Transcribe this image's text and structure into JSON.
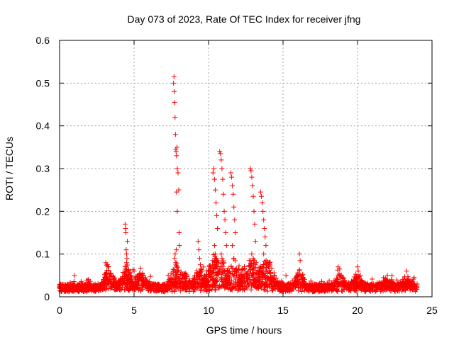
{
  "chart_data": {
    "type": "scatter",
    "title": "Day 073 of 2023, Rate Of TEC Index for receiver jfng",
    "xlabel": "GPS time / hours",
    "ylabel": "ROTI / TECUs",
    "xlim": [
      0,
      25
    ],
    "ylim": [
      0,
      0.6
    ],
    "xticks": [
      "0",
      "5",
      "10",
      "15",
      "20",
      "25"
    ],
    "yticks": [
      "0",
      "0.1",
      "0.2",
      "0.3",
      "0.4",
      "0.5",
      "0.6"
    ],
    "grid": true,
    "marker": "+",
    "color": "#ff0000",
    "series": [
      {
        "x": [
          4.4,
          4.42,
          4.45,
          4.47,
          4.5,
          4.52,
          4.55,
          4.43,
          4.48,
          4.5,
          7.65,
          7.68,
          7.7,
          7.72,
          7.75,
          7.78,
          7.8,
          7.82,
          7.85,
          7.88,
          7.9,
          7.95,
          8.0,
          7.85,
          7.9,
          8.02,
          8.05,
          7.72,
          7.76,
          7.8,
          7.83,
          7.86,
          7.9,
          9.3,
          9.35,
          9.4,
          9.45,
          9.5,
          10.3,
          10.35,
          10.4,
          10.45,
          10.5,
          10.55,
          10.6,
          10.4,
          10.45,
          10.75,
          10.8,
          10.85,
          10.9,
          10.95,
          11.0,
          11.05,
          11.1,
          11.15,
          11.2,
          10.85,
          10.9,
          11.0,
          11.5,
          11.55,
          11.6,
          11.65,
          11.7,
          11.75,
          11.8,
          11.6,
          11.7,
          12.8,
          12.85,
          12.9,
          12.95,
          13.0,
          13.05,
          13.1,
          13.15,
          12.9,
          13.0,
          13.2,
          13.5,
          13.55,
          13.6,
          13.65,
          13.7,
          13.75,
          13.8,
          13.85,
          13.7,
          16.1,
          16.15,
          18.7,
          18.8,
          20.0,
          20.05,
          22.0,
          23.3,
          3.1,
          3.2,
          5.0,
          1.0,
          15.2
        ],
        "y": [
          0.17,
          0.16,
          0.15,
          0.11,
          0.1,
          0.09,
          0.13,
          0.06,
          0.07,
          0.08,
          0.5,
          0.515,
          0.48,
          0.455,
          0.42,
          0.38,
          0.345,
          0.34,
          0.33,
          0.35,
          0.3,
          0.29,
          0.25,
          0.245,
          0.2,
          0.15,
          0.12,
          0.09,
          0.1,
          0.08,
          0.11,
          0.07,
          0.06,
          0.13,
          0.11,
          0.09,
          0.075,
          0.06,
          0.29,
          0.3,
          0.275,
          0.25,
          0.22,
          0.19,
          0.16,
          0.12,
          0.1,
          0.34,
          0.335,
          0.32,
          0.3,
          0.275,
          0.24,
          0.2,
          0.18,
          0.15,
          0.12,
          0.1,
          0.09,
          0.08,
          0.29,
          0.28,
          0.26,
          0.24,
          0.21,
          0.18,
          0.15,
          0.12,
          0.09,
          0.3,
          0.295,
          0.28,
          0.26,
          0.235,
          0.2,
          0.17,
          0.13,
          0.1,
          0.09,
          0.08,
          0.245,
          0.235,
          0.22,
          0.2,
          0.18,
          0.16,
          0.14,
          0.12,
          0.1,
          0.1,
          0.085,
          0.07,
          0.065,
          0.07,
          0.06,
          0.05,
          0.06,
          0.08,
          0.075,
          0.06,
          0.05,
          0.05
        ]
      }
    ]
  }
}
